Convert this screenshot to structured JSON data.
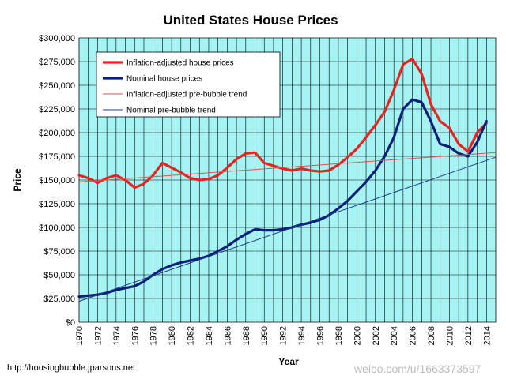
{
  "chart_data": {
    "type": "line",
    "title": "United States House Prices",
    "xlabel": "Year",
    "ylabel": "Price",
    "xlim": [
      1970,
      2015
    ],
    "ylim": [
      0,
      300000
    ],
    "y_ticks": [
      "$0",
      "$25,000",
      "$50,000",
      "$75,000",
      "$100,000",
      "$125,000",
      "$150,000",
      "$175,000",
      "$200,000",
      "$225,000",
      "$250,000",
      "$275,000",
      "$300,000"
    ],
    "x_ticks": [
      "1970",
      "1972",
      "1974",
      "1976",
      "1978",
      "1980",
      "1982",
      "1984",
      "1986",
      "1988",
      "1990",
      "1992",
      "1994",
      "1996",
      "1998",
      "2000",
      "2002",
      "2004",
      "2006",
      "2008",
      "2010",
      "2012",
      "2014"
    ],
    "grid": true,
    "legend": "top-left",
    "series": [
      {
        "name": "Inflation-adjusted house prices",
        "color": "#e8231f",
        "x": [
          1970,
          1971,
          1972,
          1973,
          1974,
          1975,
          1976,
          1977,
          1978,
          1979,
          1980,
          1981,
          1982,
          1983,
          1984,
          1985,
          1986,
          1987,
          1988,
          1989,
          1990,
          1991,
          1992,
          1993,
          1994,
          1995,
          1996,
          1997,
          1998,
          1999,
          2000,
          2001,
          2002,
          2003,
          2004,
          2005,
          2006,
          2007,
          2008,
          2009,
          2010,
          2011,
          2012,
          2013,
          2014
        ],
        "y": [
          155000,
          152000,
          147000,
          152000,
          155000,
          150000,
          142000,
          146000,
          155000,
          168000,
          163000,
          158000,
          152000,
          150000,
          151000,
          155000,
          163000,
          172000,
          178000,
          179000,
          168000,
          165000,
          162000,
          160000,
          162000,
          160000,
          159000,
          160000,
          166000,
          174000,
          183000,
          195000,
          208000,
          222000,
          245000,
          272000,
          278000,
          262000,
          230000,
          212000,
          205000,
          188000,
          180000,
          200000,
          210000
        ]
      },
      {
        "name": "Nominal house prices",
        "color": "#0a1f7a",
        "x": [
          1970,
          1971,
          1972,
          1973,
          1974,
          1975,
          1976,
          1977,
          1978,
          1979,
          1980,
          1981,
          1982,
          1983,
          1984,
          1985,
          1986,
          1987,
          1988,
          1989,
          1990,
          1991,
          1992,
          1993,
          1994,
          1995,
          1996,
          1997,
          1998,
          1999,
          2000,
          2001,
          2002,
          2003,
          2004,
          2005,
          2006,
          2007,
          2008,
          2009,
          2010,
          2011,
          2012,
          2013,
          2014
        ],
        "y": [
          27000,
          28000,
          29000,
          31000,
          34000,
          36000,
          38000,
          43000,
          50000,
          56000,
          60000,
          63000,
          65000,
          67000,
          70000,
          75000,
          80000,
          87000,
          93000,
          98000,
          97000,
          97000,
          98000,
          100000,
          103000,
          105000,
          108000,
          113000,
          120000,
          128000,
          138000,
          148000,
          160000,
          175000,
          195000,
          225000,
          235000,
          232000,
          212000,
          188000,
          185000,
          178000,
          175000,
          190000,
          212000
        ]
      },
      {
        "name": "Inflation-adjusted pre-bubble trend",
        "color": "#e05050",
        "x": [
          1970,
          2015
        ],
        "y": [
          148000,
          179000
        ]
      },
      {
        "name": "Nominal pre-bubble trend",
        "color": "#1f3c88",
        "x": [
          1970,
          2015
        ],
        "y": [
          22000,
          174000
        ]
      }
    ]
  },
  "footer": {
    "source": "http://housingbubble.jparsons.net",
    "watermark": "weibo.com/u/1663373597"
  }
}
